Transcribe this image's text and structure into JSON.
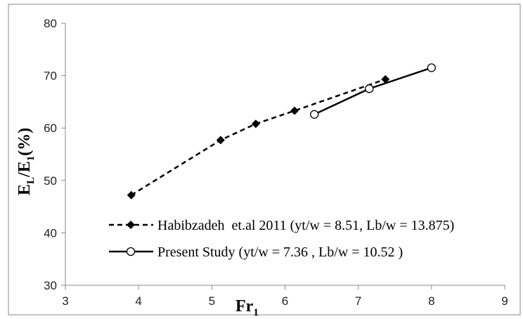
{
  "chart_data": {
    "type": "line",
    "xlabel": [
      "Fr",
      "1"
    ],
    "ylabel": [
      "E",
      "L",
      "/E",
      "1",
      "(%)"
    ],
    "xlim": [
      3,
      9
    ],
    "xticks": [
      3,
      4,
      5,
      6,
      7,
      8,
      9
    ],
    "ylim": [
      30,
      80
    ],
    "yticks": [
      30,
      40,
      50,
      60,
      70,
      80
    ],
    "series": [
      {
        "name": "Habibzadeh  et.al 2011 (yt/w = 8.51, Lb/w = 13.875)",
        "color": "#000000",
        "dash": true,
        "marker": "diamond",
        "x": [
          3.9,
          5.12,
          5.6,
          6.13,
          7.37
        ],
        "values": [
          47.2,
          57.7,
          60.8,
          63.3,
          69.3
        ]
      },
      {
        "name": "Present Study (yt/w = 7.36 , Lb/w = 10.52 )",
        "color": "#000000",
        "dash": false,
        "marker": "circle",
        "x": [
          6.4,
          7.15,
          8.0
        ],
        "values": [
          62.6,
          67.5,
          71.5
        ]
      }
    ]
  }
}
